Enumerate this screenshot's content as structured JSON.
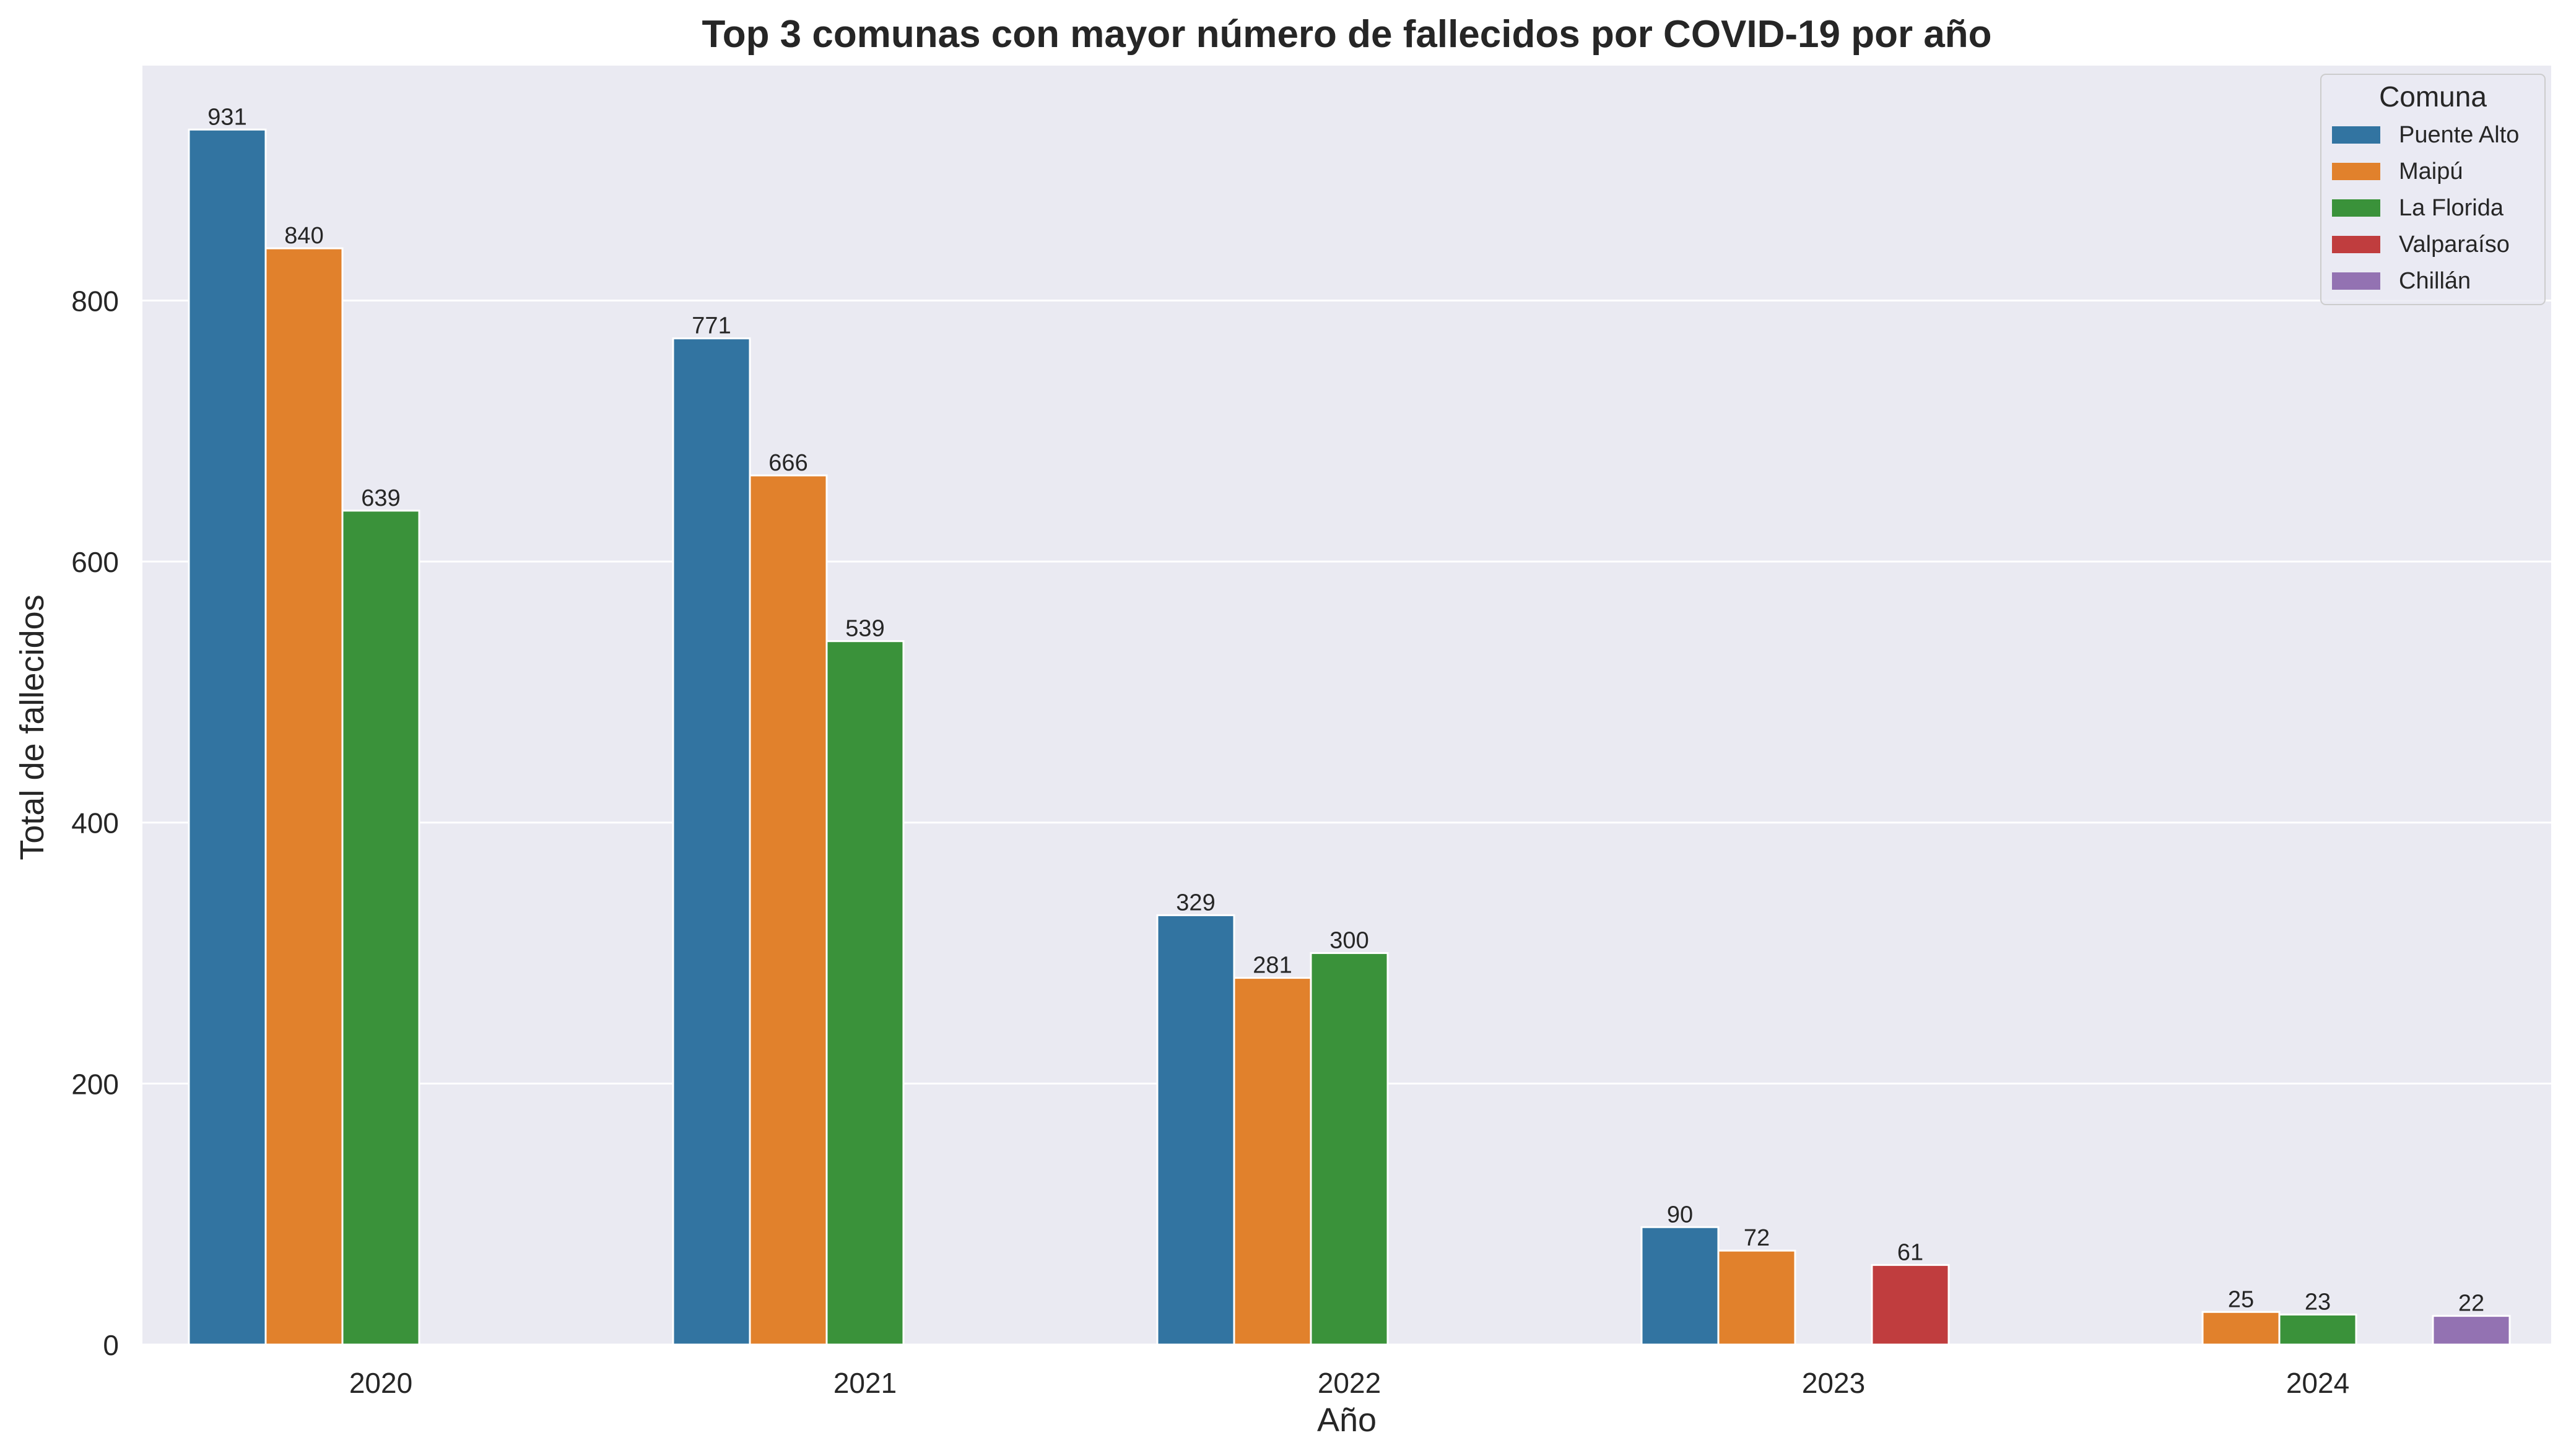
{
  "chart_data": {
    "type": "bar",
    "title": "Top 3 comunas con mayor número de fallecidos por COVID-19 por año",
    "xlabel": "Año",
    "ylabel": "Total de fallecidos",
    "categories": [
      "2020",
      "2021",
      "2022",
      "2023",
      "2024"
    ],
    "ylim": [
      0,
      980
    ],
    "yticks": [
      0,
      200,
      400,
      600,
      800
    ],
    "grid": true,
    "legend": {
      "title": "Comuna",
      "placement": "top-right"
    },
    "series": [
      {
        "name": "Puente Alto",
        "color": "#3274a1",
        "values": [
          931,
          771,
          329,
          90,
          null
        ]
      },
      {
        "name": "Maipú",
        "color": "#e1812c",
        "values": [
          840,
          666,
          281,
          72,
          25
        ]
      },
      {
        "name": "La Florida",
        "color": "#3a923a",
        "values": [
          639,
          539,
          300,
          null,
          23
        ]
      },
      {
        "name": "Valparaíso",
        "color": "#c03d3e",
        "values": [
          null,
          null,
          null,
          61,
          null
        ]
      },
      {
        "name": "Chillán",
        "color": "#9372b2",
        "values": [
          null,
          null,
          null,
          null,
          22
        ]
      }
    ]
  },
  "colors": {
    "plot_background": "#eaeaf2",
    "gridline": "#ffffff"
  }
}
